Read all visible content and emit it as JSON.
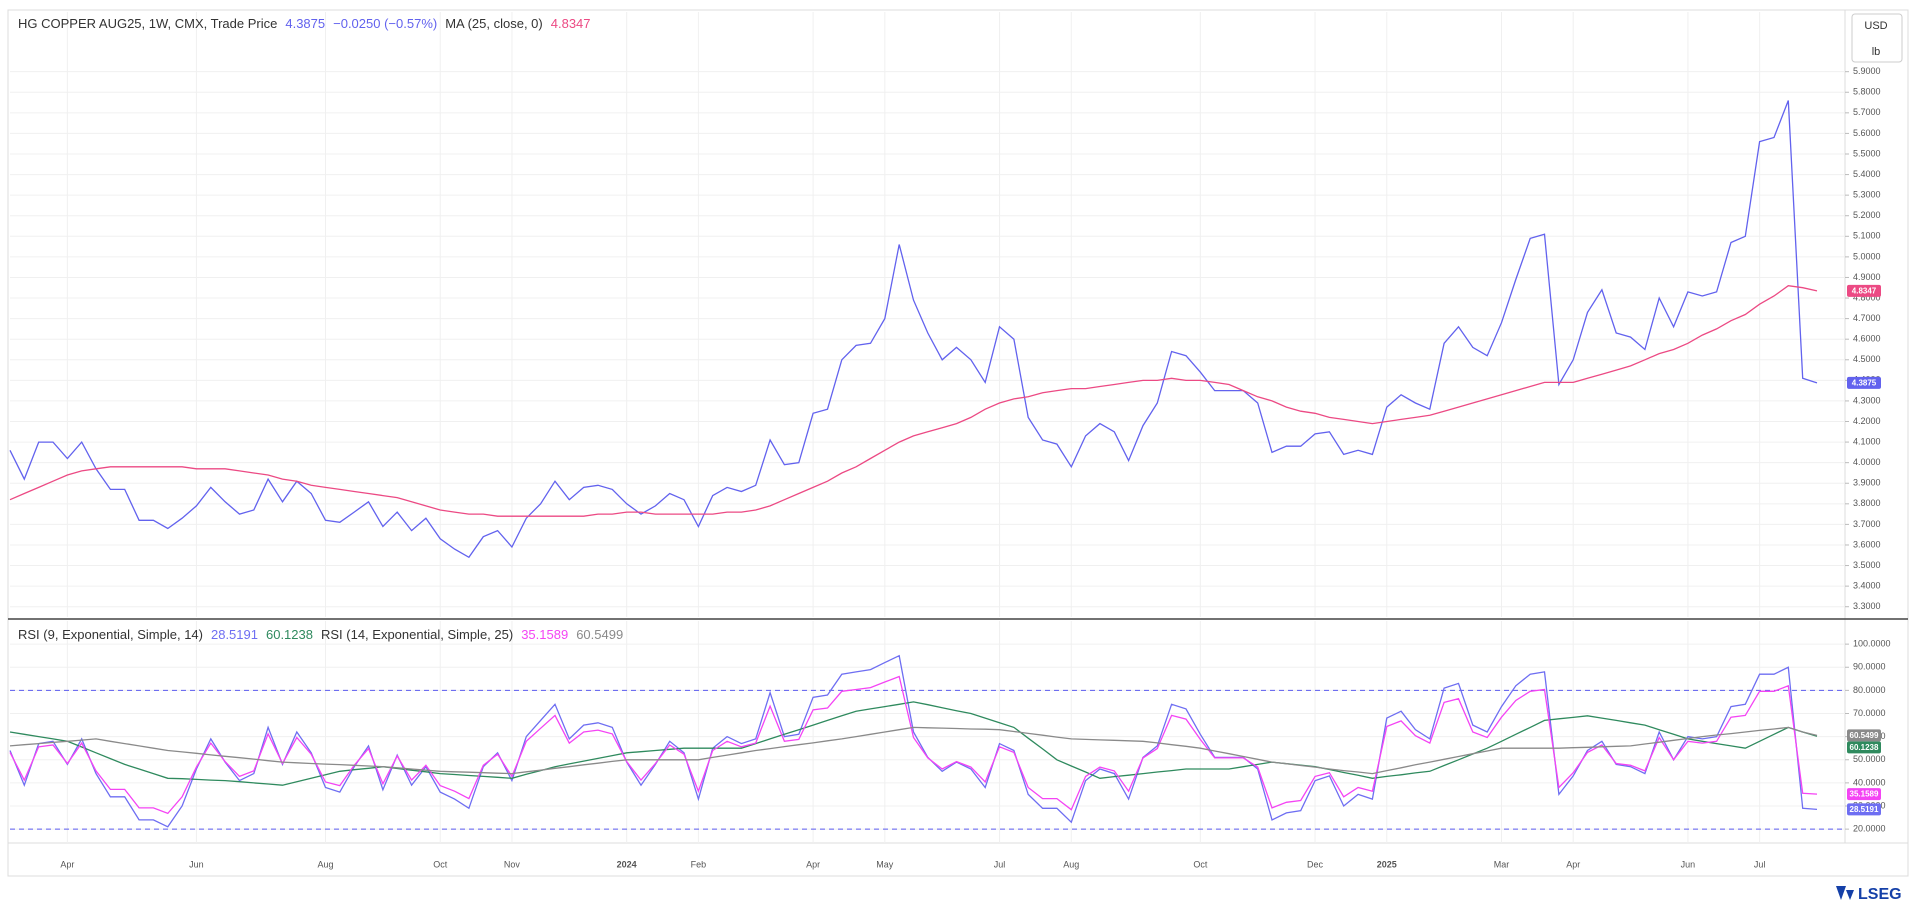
{
  "brand": "LSEG",
  "chart_data": [
    {
      "type": "line",
      "change": "−0.0250 (−0.57%)",
      "currency": "USD",
      "unit": "lb",
      "ylim": [
        3.25,
        6.19
      ],
      "grid": true,
      "yticks": [
        {
          "value": 3.3,
          "label": "3.3000"
        },
        {
          "value": 3.4,
          "label": "3.4000"
        },
        {
          "value": 3.5,
          "label": "3.5000"
        },
        {
          "value": 3.6,
          "label": "3.6000"
        },
        {
          "value": 3.7,
          "label": "3.7000"
        },
        {
          "value": 3.8,
          "label": "3.8000"
        },
        {
          "value": 3.9,
          "label": "3.9000"
        },
        {
          "value": 4.0,
          "label": "4.0000"
        },
        {
          "value": 4.1,
          "label": "4.1000"
        },
        {
          "value": 4.2,
          "label": "4.2000"
        },
        {
          "value": 4.3,
          "label": "4.3000"
        },
        {
          "value": 4.4,
          "label": "4.4000"
        },
        {
          "value": 4.5,
          "label": "4.5000"
        },
        {
          "value": 4.6,
          "label": "4.6000"
        },
        {
          "value": 4.7,
          "label": "4.7000"
        },
        {
          "value": 4.8,
          "label": "4.8000"
        },
        {
          "value": 4.9,
          "label": "4.9000"
        },
        {
          "value": 5.0,
          "label": "5.0000"
        },
        {
          "value": 5.1,
          "label": "5.1000"
        },
        {
          "value": 5.2,
          "label": "5.2000"
        },
        {
          "value": 5.3,
          "label": "5.3000"
        },
        {
          "value": 5.4,
          "label": "5.4000"
        },
        {
          "value": 5.5,
          "label": "5.5000"
        },
        {
          "value": 5.6,
          "label": "5.6000"
        },
        {
          "value": 5.7,
          "label": "5.7000"
        },
        {
          "value": 5.8,
          "label": "5.8000"
        },
        {
          "value": 5.9,
          "label": "5.9000"
        }
      ],
      "series": [
        {
          "name": "HG COPPER AUG25, 1W, CMX, Trade Price",
          "color": "#6262ee",
          "values": [
            4.06,
            3.92,
            4.1,
            4.1,
            4.02,
            4.1,
            3.97,
            3.87,
            3.87,
            3.72,
            3.72,
            3.68,
            3.73,
            3.79,
            3.88,
            3.81,
            3.75,
            3.77,
            3.92,
            3.81,
            3.91,
            3.85,
            3.72,
            3.71,
            3.76,
            3.81,
            3.69,
            3.76,
            3.67,
            3.73,
            3.63,
            3.58,
            3.54,
            3.64,
            3.67,
            3.59,
            3.73,
            3.8,
            3.91,
            3.82,
            3.88,
            3.89,
            3.87,
            3.8,
            3.75,
            3.79,
            3.85,
            3.82,
            3.69,
            3.84,
            3.88,
            3.86,
            3.89,
            4.11,
            3.99,
            4.0,
            4.24,
            4.26,
            4.5,
            4.57,
            4.58,
            4.7,
            5.06,
            4.79,
            4.63,
            4.5,
            4.56,
            4.5,
            4.39,
            4.66,
            4.6,
            4.22,
            4.11,
            4.09,
            3.98,
            4.13,
            4.19,
            4.15,
            4.01,
            4.18,
            4.29,
            4.54,
            4.52,
            4.44,
            4.35,
            4.35,
            4.35,
            4.29,
            4.05,
            4.08,
            4.08,
            4.14,
            4.15,
            4.04,
            4.06,
            4.04,
            4.27,
            4.33,
            4.29,
            4.26,
            4.58,
            4.66,
            4.56,
            4.52,
            4.68,
            4.89,
            5.09,
            5.11,
            4.38,
            4.5,
            4.73,
            4.84,
            4.63,
            4.61,
            4.55,
            4.8,
            4.66,
            4.83,
            4.81,
            4.83,
            5.07,
            5.1,
            5.56,
            5.58,
            5.76,
            4.41,
            4.3875
          ]
        },
        {
          "name": "MA (25, close, 0)",
          "color": "#ec4a84",
          "values": [
            3.82,
            3.85,
            3.88,
            3.91,
            3.94,
            3.96,
            3.97,
            3.98,
            3.98,
            3.98,
            3.98,
            3.98,
            3.98,
            3.97,
            3.97,
            3.97,
            3.96,
            3.95,
            3.94,
            3.92,
            3.91,
            3.89,
            3.88,
            3.87,
            3.86,
            3.85,
            3.84,
            3.83,
            3.81,
            3.79,
            3.77,
            3.76,
            3.75,
            3.75,
            3.74,
            3.74,
            3.74,
            3.74,
            3.74,
            3.74,
            3.74,
            3.75,
            3.75,
            3.76,
            3.76,
            3.75,
            3.75,
            3.75,
            3.75,
            3.75,
            3.76,
            3.76,
            3.77,
            3.79,
            3.82,
            3.85,
            3.88,
            3.91,
            3.95,
            3.98,
            4.02,
            4.06,
            4.1,
            4.13,
            4.15,
            4.17,
            4.19,
            4.22,
            4.26,
            4.29,
            4.31,
            4.32,
            4.34,
            4.35,
            4.36,
            4.36,
            4.37,
            4.38,
            4.39,
            4.4,
            4.4,
            4.41,
            4.4,
            4.4,
            4.39,
            4.38,
            4.35,
            4.32,
            4.3,
            4.27,
            4.25,
            4.24,
            4.22,
            4.21,
            4.2,
            4.19,
            4.2,
            4.21,
            4.22,
            4.23,
            4.25,
            4.27,
            4.29,
            4.31,
            4.33,
            4.35,
            4.37,
            4.39,
            4.39,
            4.39,
            4.41,
            4.43,
            4.45,
            4.47,
            4.5,
            4.53,
            4.55,
            4.58,
            4.62,
            4.65,
            4.69,
            4.72,
            4.77,
            4.81,
            4.86,
            4.85,
            4.8347
          ]
        }
      ]
    },
    {
      "type": "line",
      "ylim": [
        14,
        110
      ],
      "grid": true,
      "levels": [
        20,
        80
      ],
      "yticks": [
        {
          "value": 20,
          "label": "20.0000"
        },
        {
          "value": 30,
          "label": "30.0000"
        },
        {
          "value": 40,
          "label": "40.0000"
        },
        {
          "value": 50,
          "label": "50.0000"
        },
        {
          "value": 60,
          "label": "60.0000"
        },
        {
          "value": 70,
          "label": "70.0000"
        },
        {
          "value": 80,
          "label": "80.0000"
        },
        {
          "value": 90,
          "label": "90.0000"
        },
        {
          "value": 100,
          "label": "100.0000"
        }
      ],
      "categories": [
        null,
        null,
        null,
        null,
        "Apr",
        null,
        null,
        null,
        null,
        null,
        null,
        null,
        null,
        "Jun",
        null,
        null,
        null,
        null,
        null,
        null,
        null,
        null,
        "Aug",
        null,
        null,
        null,
        null,
        null,
        null,
        null,
        "Oct",
        null,
        null,
        null,
        null,
        "Nov",
        null,
        null,
        null,
        null,
        null,
        null,
        null,
        "2024",
        null,
        null,
        null,
        null,
        "Feb",
        null,
        null,
        null,
        null,
        null,
        null,
        null,
        "Apr",
        null,
        null,
        null,
        null,
        "May",
        null,
        null,
        null,
        null,
        null,
        null,
        null,
        "Jul",
        null,
        null,
        null,
        null,
        "Aug",
        null,
        null,
        null,
        null,
        null,
        null,
        null,
        null,
        "Oct",
        null,
        null,
        null,
        null,
        null,
        null,
        null,
        "Dec",
        null,
        null,
        null,
        null,
        "2025",
        null,
        null,
        null,
        null,
        null,
        null,
        null,
        "Mar",
        null,
        null,
        null,
        null,
        "Apr",
        null,
        null,
        null,
        null,
        null,
        null,
        null,
        "Jun",
        null,
        null,
        null,
        null,
        "Jul",
        null,
        null,
        null,
        null
      ],
      "series": [
        {
          "name": "RSI (9, Exponential, Simple, 14)",
          "color": "#6e6ef2",
          "values": [
            54,
            39,
            57,
            58,
            48,
            59,
            44,
            34,
            34,
            24,
            24,
            21,
            30,
            46,
            59,
            49,
            41,
            44,
            64,
            48,
            62,
            53,
            38,
            36,
            47,
            56,
            37,
            52,
            39,
            47,
            36,
            33,
            29,
            47,
            53,
            41,
            60,
            67,
            74,
            59,
            65,
            66,
            64,
            49,
            39,
            48,
            58,
            53,
            33,
            55,
            60,
            57,
            59,
            79,
            60,
            61,
            77,
            78,
            87,
            88,
            89,
            92,
            95,
            62,
            51,
            45,
            49,
            46,
            38,
            57,
            54,
            35,
            29,
            29,
            23,
            41,
            46,
            44,
            33,
            51,
            56,
            74,
            72,
            61,
            51,
            51,
            51,
            46,
            24,
            27,
            28,
            41,
            43,
            30,
            35,
            33,
            68,
            71,
            63,
            59,
            81,
            83,
            65,
            62,
            73,
            82,
            87,
            88,
            35,
            43,
            54,
            58,
            48,
            47,
            44,
            62,
            50,
            60,
            59,
            60,
            73,
            74,
            87,
            87,
            90,
            29,
            28.5191
          ]
        },
        {
          "color": "#2f8a5e",
          "values": [
            62,
            61,
            60,
            59,
            58,
            55.5,
            53,
            50.5,
            48,
            46,
            44,
            42,
            41.8,
            41.5,
            41.2,
            41,
            40.5,
            40,
            39.5,
            39,
            40.5,
            42,
            43.5,
            45,
            45.7,
            46.3,
            47,
            46.2,
            45.5,
            44.8,
            44,
            43.6,
            43.2,
            42.8,
            42.4,
            42,
            43.7,
            45.3,
            47,
            48.2,
            49.4,
            50.6,
            51.8,
            53,
            53.5,
            54,
            54.5,
            55,
            55,
            55,
            55,
            55,
            57,
            59,
            61,
            63,
            65,
            67,
            69,
            71,
            72,
            73,
            74,
            75,
            73.8,
            72.5,
            71.2,
            70,
            68,
            66,
            64,
            59.3,
            54.7,
            50,
            47.3,
            44.7,
            42,
            42.7,
            43.3,
            44,
            44.7,
            45.3,
            46,
            46,
            46,
            46,
            47,
            48,
            49,
            48.3,
            47.7,
            47,
            45.8,
            44.5,
            43.3,
            42,
            42.8,
            43.5,
            44.3,
            45,
            47.5,
            50,
            52.5,
            55,
            58,
            61,
            64,
            67,
            67.7,
            68.3,
            69,
            68,
            67,
            66,
            65,
            63,
            61,
            59,
            58,
            57,
            56,
            55,
            58,
            61,
            64,
            62,
            60.1238
          ]
        },
        {
          "name": "RSI (14, Exponential, Simple, 25)",
          "color": "#f444f4",
          "values": [
            53.2,
            41.2,
            55.6,
            56.4,
            48.4,
            57.2,
            45.2,
            37.2,
            37.2,
            29.2,
            29.2,
            26.8,
            34,
            46.8,
            57.2,
            49.2,
            42.8,
            45.2,
            61.2,
            48.4,
            59.6,
            52.4,
            40.4,
            38.8,
            47.6,
            54.8,
            39.6,
            51.6,
            41.2,
            47.6,
            38.8,
            36.4,
            33.2,
            47.6,
            52.4,
            42.8,
            58,
            63.6,
            69.2,
            57.2,
            62,
            62.8,
            61.2,
            49.2,
            41.2,
            48.4,
            56.4,
            52.4,
            36.4,
            54,
            58,
            55.6,
            57.2,
            73.2,
            58,
            58.8,
            71.6,
            72.4,
            79.6,
            80.4,
            81.2,
            83.6,
            86,
            59.6,
            50.8,
            46,
            49.2,
            46.8,
            40.4,
            55.6,
            53.2,
            38,
            33.2,
            33.2,
            28.4,
            42.8,
            46.8,
            45.2,
            36.4,
            50.8,
            54.8,
            69.2,
            67.6,
            58.8,
            50.8,
            50.8,
            50.8,
            46.8,
            29.2,
            31.6,
            32.4,
            42.8,
            44.4,
            34,
            38,
            36.4,
            64.4,
            66.8,
            60.4,
            57.2,
            74.8,
            76.4,
            62,
            59.6,
            68.4,
            75.6,
            79.6,
            80.4,
            38,
            44.4,
            53.2,
            56.4,
            48.4,
            47.6,
            45.2,
            59.6,
            50,
            58,
            57.2,
            58,
            68.4,
            69.2,
            79.6,
            79.6,
            82,
            35.5,
            35.1589
          ]
        },
        {
          "color": "#8a8a8a",
          "values": [
            56,
            56.5,
            57,
            57.5,
            58,
            58.5,
            59,
            58,
            57,
            56,
            55,
            54,
            53.4,
            52.8,
            52.1,
            51.5,
            50.9,
            50.3,
            49.6,
            49,
            48.7,
            48.4,
            48.1,
            47.9,
            47.6,
            47.3,
            47,
            46.5,
            46,
            45.5,
            45,
            44.8,
            44.6,
            44.4,
            44.2,
            44,
            44.8,
            45.5,
            46.3,
            47,
            47.8,
            48.5,
            49.3,
            50,
            50,
            50,
            50,
            50,
            50,
            51,
            52,
            53,
            54,
            54.8,
            55.7,
            56.5,
            57.3,
            58.2,
            59,
            60,
            61,
            62,
            63,
            64,
            63.8,
            63.7,
            63.5,
            63.3,
            63.2,
            63,
            62.2,
            61.4,
            60.6,
            59.8,
            59,
            58.8,
            58.6,
            58.4,
            58.2,
            58,
            57.3,
            56.5,
            55.8,
            55,
            53.8,
            52.6,
            51.4,
            50.2,
            49,
            48.3,
            47.5,
            46.8,
            46,
            45.3,
            44.7,
            44,
            45.3,
            46.5,
            47.8,
            49,
            50.2,
            51.4,
            52.6,
            53.8,
            55,
            55,
            55,
            55,
            55,
            55.2,
            55.4,
            55.6,
            55.8,
            56,
            56.8,
            57.6,
            58.4,
            59.2,
            60,
            60.7,
            61.3,
            62,
            62.7,
            63.3,
            64,
            62,
            60.5499
          ]
        }
      ]
    }
  ]
}
